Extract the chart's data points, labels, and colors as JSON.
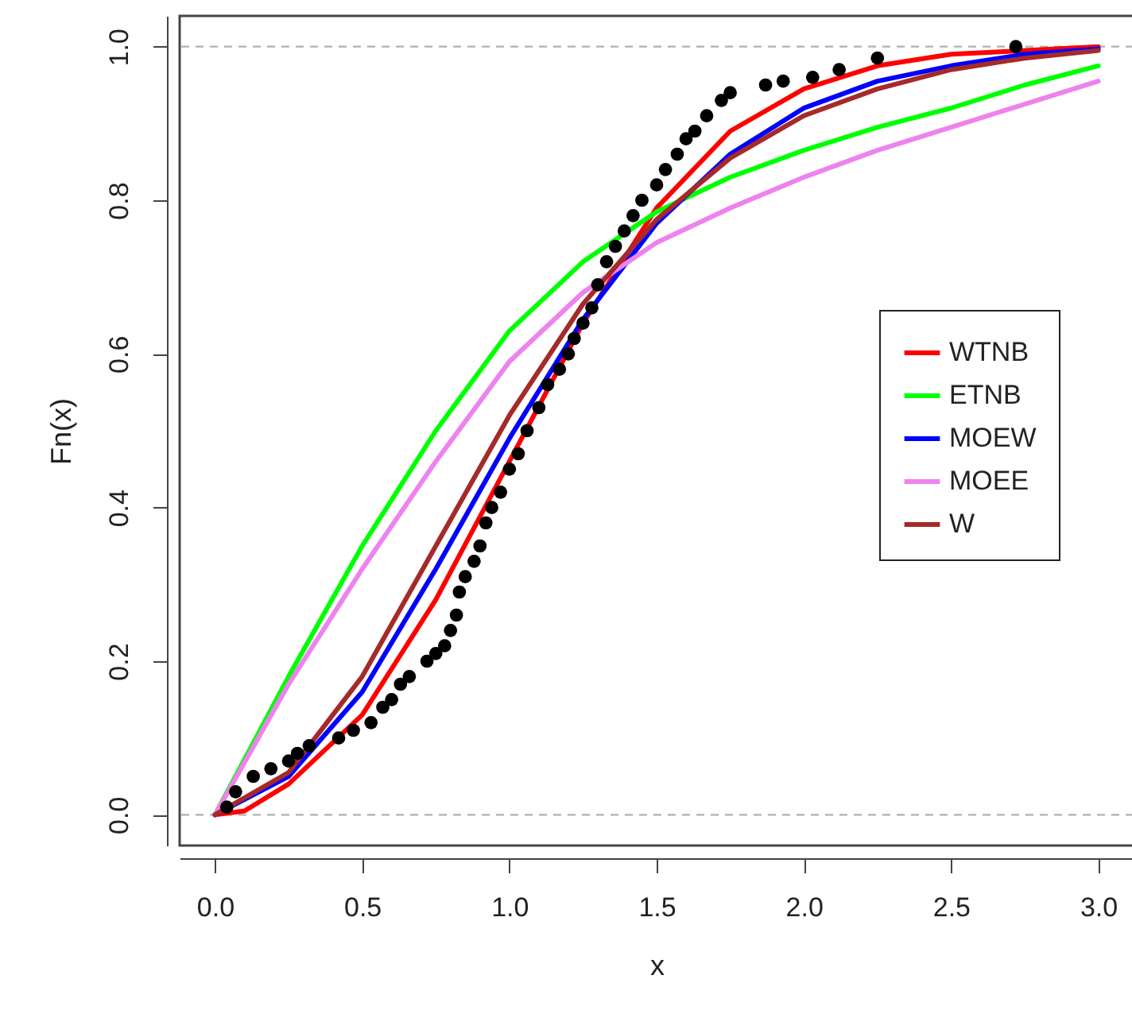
{
  "chart_data": {
    "type": "line",
    "xlabel": "x",
    "ylabel": "Fn(x)",
    "xlim": [
      -0.12,
      3.12
    ],
    "ylim": [
      -0.04,
      1.04
    ],
    "xticks": [
      {
        "value": 0,
        "label": "0.0"
      },
      {
        "value": 0.5,
        "label": "0.5"
      },
      {
        "value": 1,
        "label": "1.0"
      },
      {
        "value": 1.5,
        "label": "1.5"
      },
      {
        "value": 2,
        "label": "2.0"
      },
      {
        "value": 2.5,
        "label": "2.5"
      },
      {
        "value": 3,
        "label": "3.0"
      }
    ],
    "yticks": [
      {
        "value": 0,
        "label": "0.0"
      },
      {
        "value": 0.2,
        "label": "0.2"
      },
      {
        "value": 0.4,
        "label": "0.4"
      },
      {
        "value": 0.6,
        "label": "0.6"
      },
      {
        "value": 0.8,
        "label": "0.8"
      },
      {
        "value": 1,
        "label": "1.0"
      }
    ],
    "grid": false,
    "legend": "right",
    "ref_lines": [
      {
        "axis": "y",
        "value": 0,
        "color": "#b0b0b0",
        "line_style": "dashed"
      },
      {
        "axis": "y",
        "value": 1,
        "color": "#b0b0b0",
        "line_style": "dashed"
      }
    ],
    "series": [
      {
        "type": "scatter",
        "color": "#000000",
        "marker": "circle",
        "x": [
          0.04,
          0.07,
          0.13,
          0.19,
          0.25,
          0.28,
          0.32,
          0.42,
          0.47,
          0.53,
          0.57,
          0.6,
          0.63,
          0.66,
          0.72,
          0.75,
          0.78,
          0.8,
          0.82,
          0.83,
          0.85,
          0.88,
          0.9,
          0.92,
          0.94,
          0.97,
          1.0,
          1.03,
          1.06,
          1.1,
          1.13,
          1.17,
          1.2,
          1.22,
          1.25,
          1.28,
          1.3,
          1.33,
          1.36,
          1.39,
          1.42,
          1.45,
          1.5,
          1.53,
          1.57,
          1.6,
          1.63,
          1.67,
          1.72,
          1.75,
          1.87,
          1.93,
          2.03,
          2.12,
          2.25,
          2.72
        ],
        "values": [
          0.01,
          0.03,
          0.05,
          0.06,
          0.07,
          0.08,
          0.09,
          0.1,
          0.11,
          0.12,
          0.14,
          0.15,
          0.17,
          0.18,
          0.2,
          0.21,
          0.22,
          0.24,
          0.26,
          0.29,
          0.31,
          0.33,
          0.35,
          0.38,
          0.4,
          0.42,
          0.45,
          0.47,
          0.5,
          0.53,
          0.56,
          0.58,
          0.6,
          0.62,
          0.64,
          0.66,
          0.69,
          0.72,
          0.74,
          0.76,
          0.78,
          0.8,
          0.82,
          0.84,
          0.86,
          0.88,
          0.89,
          0.91,
          0.93,
          0.94,
          0.95,
          0.955,
          0.96,
          0.97,
          0.985,
          1.0
        ]
      },
      {
        "name": "WTNB",
        "color": "#ff0000",
        "x": [
          0,
          0.1,
          0.25,
          0.5,
          0.75,
          1,
          1.25,
          1.5,
          1.75,
          2,
          2.25,
          2.5,
          3
        ],
        "values": [
          0,
          0.005,
          0.04,
          0.13,
          0.28,
          0.46,
          0.64,
          0.79,
          0.89,
          0.945,
          0.975,
          0.99,
          1.0
        ]
      },
      {
        "name": "ETNB",
        "color": "#00ff00",
        "x": [
          0,
          0.25,
          0.5,
          0.75,
          1,
          1.25,
          1.5,
          1.75,
          2,
          2.25,
          2.5,
          2.75,
          3
        ],
        "values": [
          0,
          0.18,
          0.35,
          0.5,
          0.63,
          0.72,
          0.785,
          0.83,
          0.865,
          0.895,
          0.92,
          0.95,
          0.975
        ]
      },
      {
        "name": "MOEW",
        "color": "#0000ff",
        "x": [
          0,
          0.25,
          0.5,
          0.75,
          1,
          1.25,
          1.5,
          1.75,
          2,
          2.25,
          2.5,
          2.75,
          3
        ],
        "values": [
          0,
          0.05,
          0.16,
          0.32,
          0.49,
          0.645,
          0.77,
          0.86,
          0.92,
          0.955,
          0.975,
          0.99,
          0.997
        ]
      },
      {
        "name": "MOEE",
        "color": "#ee82ee",
        "x": [
          0,
          0.25,
          0.5,
          0.75,
          1,
          1.25,
          1.5,
          1.75,
          2,
          2.25,
          2.5,
          2.75,
          3
        ],
        "values": [
          0,
          0.17,
          0.32,
          0.46,
          0.59,
          0.68,
          0.745,
          0.79,
          0.83,
          0.865,
          0.895,
          0.925,
          0.955
        ]
      },
      {
        "name": "W",
        "color": "#a52a2a",
        "x": [
          0,
          0.25,
          0.5,
          0.75,
          1,
          1.25,
          1.5,
          1.75,
          2,
          2.25,
          2.5,
          2.75,
          3
        ],
        "values": [
          0,
          0.055,
          0.18,
          0.35,
          0.52,
          0.665,
          0.775,
          0.855,
          0.91,
          0.945,
          0.97,
          0.985,
          0.995
        ]
      }
    ]
  }
}
